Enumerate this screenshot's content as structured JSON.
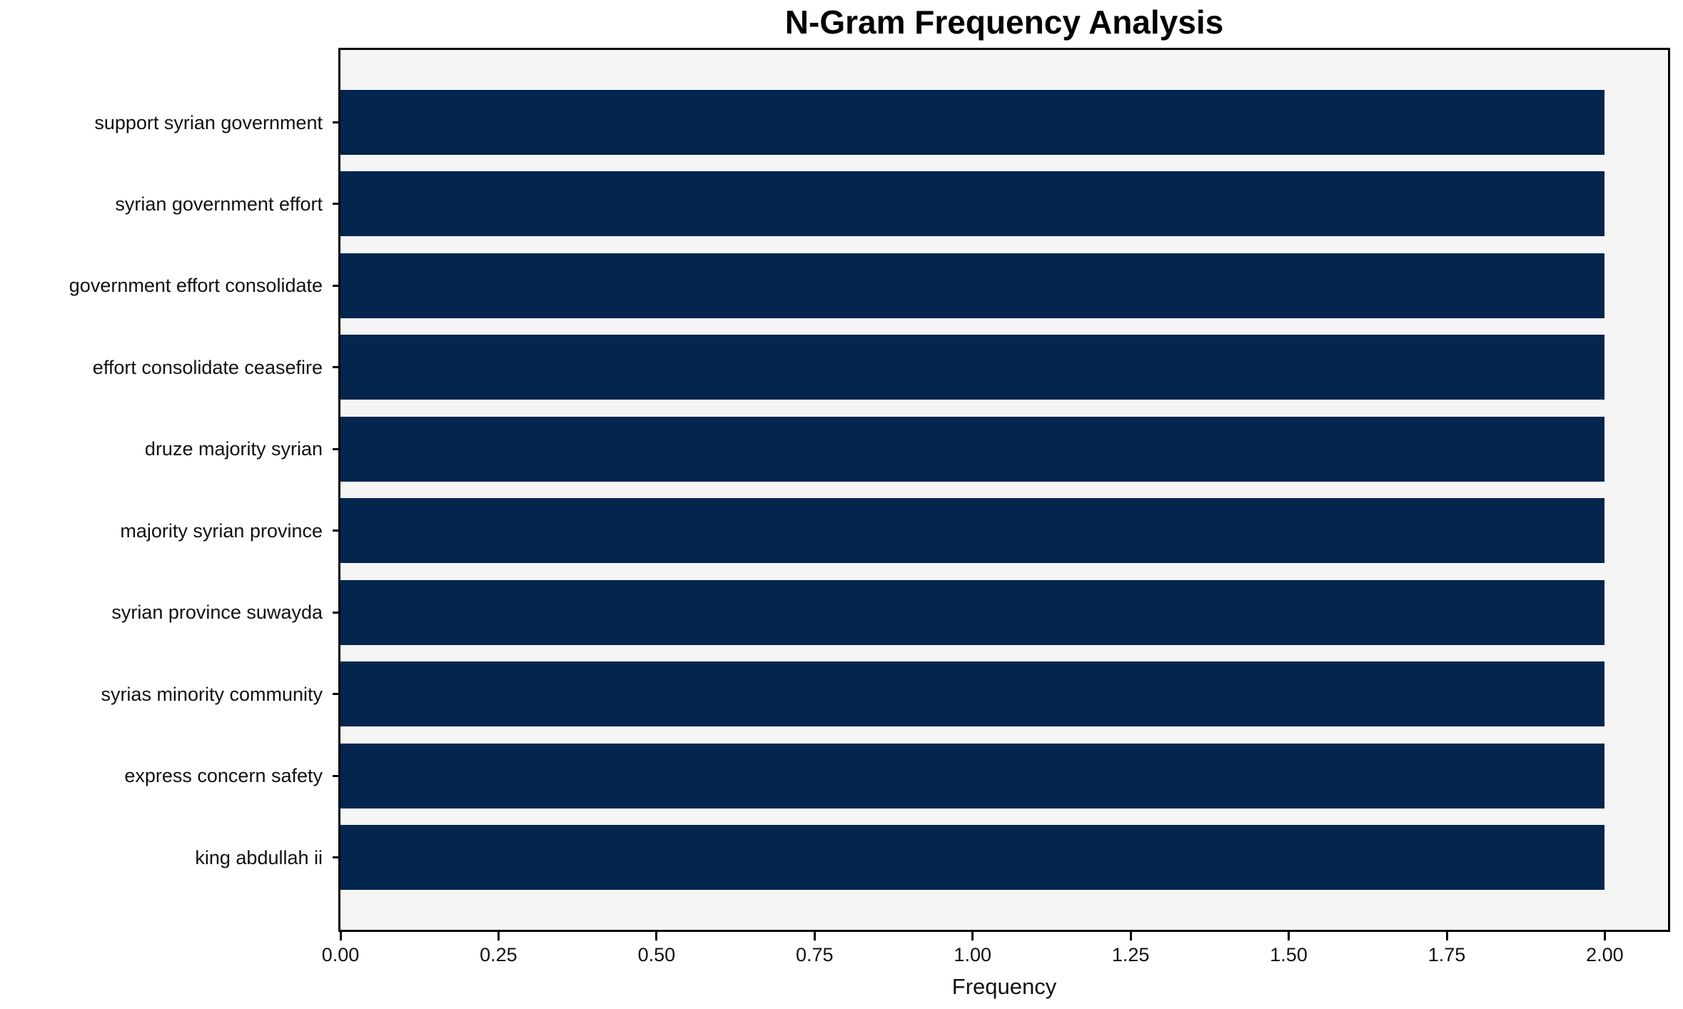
{
  "figure": {
    "background": "#ffffff"
  },
  "chart_data": {
    "type": "bar",
    "orientation": "horizontal",
    "title": "N-Gram Frequency Analysis",
    "xlabel": "Frequency",
    "ylabel": "",
    "categories": [
      "support syrian government",
      "syrian government effort",
      "government effort consolidate",
      "effort consolidate ceasefire",
      "druze majority syrian",
      "majority syrian province",
      "syrian province suwayda",
      "syrias minority community",
      "express concern safety",
      "king abdullah ii"
    ],
    "values": [
      2,
      2,
      2,
      2,
      2,
      2,
      2,
      2,
      2,
      2
    ],
    "xlim": [
      0,
      2.1
    ],
    "xticks": [
      {
        "value": 0.0,
        "label": "0.00"
      },
      {
        "value": 0.25,
        "label": "0.25"
      },
      {
        "value": 0.5,
        "label": "0.50"
      },
      {
        "value": 0.75,
        "label": "0.75"
      },
      {
        "value": 1.0,
        "label": "1.00"
      },
      {
        "value": 1.25,
        "label": "1.25"
      },
      {
        "value": 1.5,
        "label": "1.50"
      },
      {
        "value": 1.75,
        "label": "1.75"
      },
      {
        "value": 2.0,
        "label": "2.00"
      }
    ],
    "grid": false,
    "legend_position": "none",
    "colors": {
      "bar": "#03254e",
      "plot_background": "#f5f5f6",
      "figure_background": "#ffffff",
      "axis": "#000000",
      "text": "#111111"
    }
  }
}
